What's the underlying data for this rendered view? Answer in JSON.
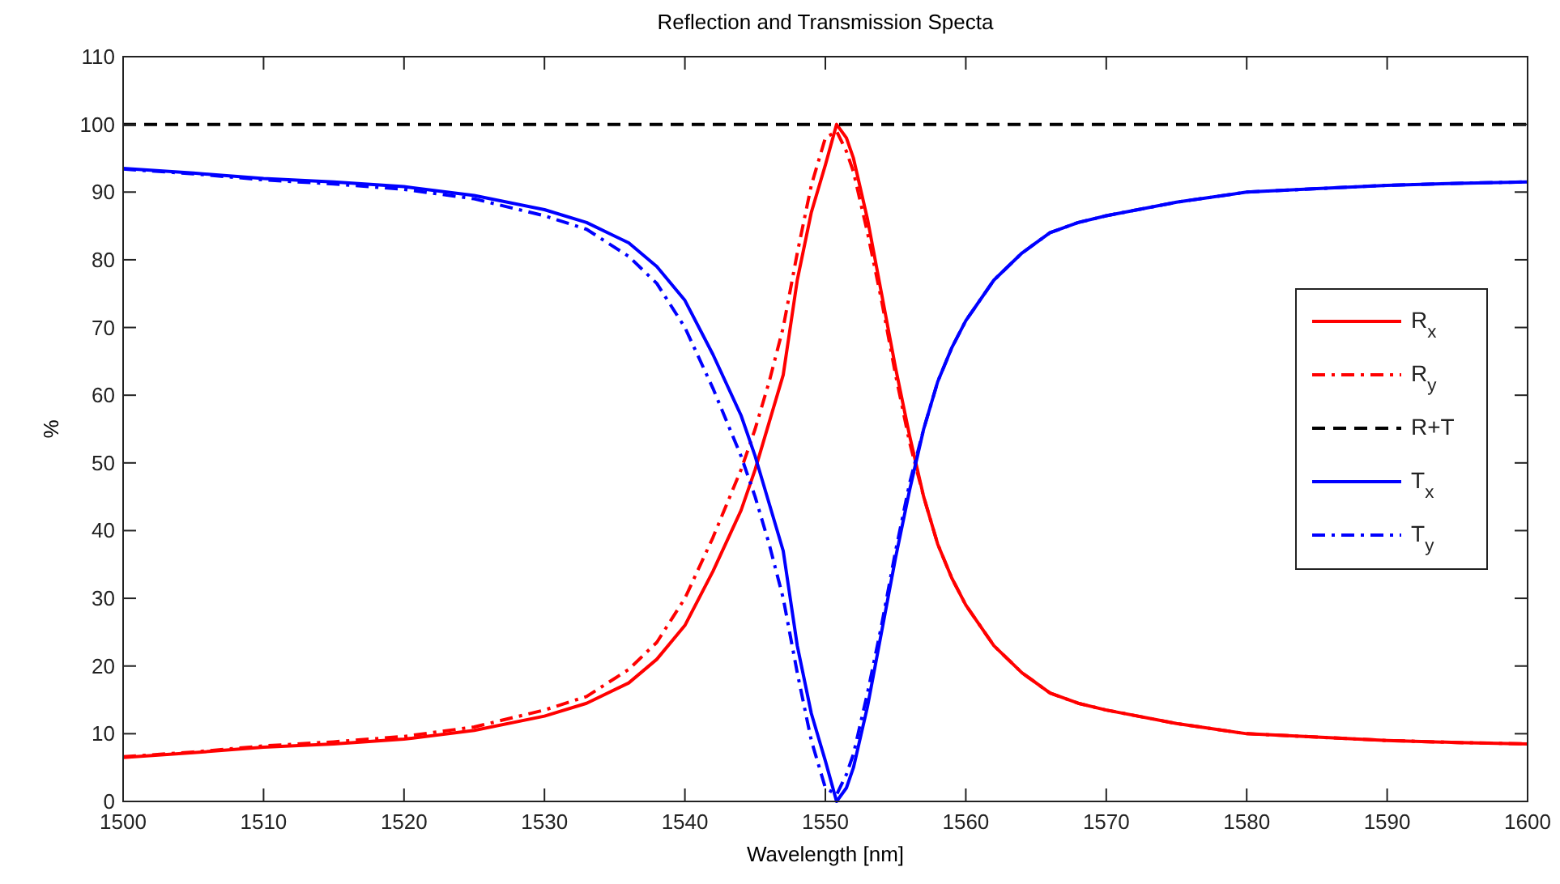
{
  "chart_data": {
    "type": "line",
    "title": "Reflection and Transmission Specta",
    "xlabel": "Wavelength [nm]",
    "ylabel": "%",
    "x": [
      1500,
      1505,
      1510,
      1515,
      1520,
      1525,
      1530,
      1533,
      1536,
      1538,
      1540,
      1542,
      1544,
      1545,
      1546,
      1547,
      1548,
      1549,
      1550,
      1550.8,
      1551.5,
      1552,
      1553,
      1554,
      1555,
      1556,
      1557,
      1558,
      1559,
      1560,
      1562,
      1564,
      1566,
      1568,
      1570,
      1575,
      1580,
      1585,
      1590,
      1595,
      1600
    ],
    "series": [
      {
        "name": "R$_{x}$",
        "color": "#ff0000",
        "line_style": "solid",
        "values": [
          6.5,
          7.2,
          8,
          8.5,
          9.2,
          10.5,
          12.6,
          14.5,
          17.5,
          21,
          26,
          34,
          43,
          49,
          56,
          63,
          77,
          87,
          94,
          100,
          98,
          95,
          86,
          75,
          64,
          54,
          45,
          38,
          33,
          29,
          23,
          19,
          16,
          14.5,
          13.5,
          11.5,
          10,
          9.5,
          9,
          8.7,
          8.5
        ]
      },
      {
        "name": "R$_{y}$",
        "color": "#ff0000",
        "line_style": "dashdot",
        "values": [
          6.6,
          7.3,
          8.2,
          8.8,
          9.6,
          11,
          13.5,
          15.5,
          19.5,
          23.5,
          30,
          39,
          49,
          55,
          62,
          70,
          81,
          91,
          98,
          99,
          96,
          93,
          84,
          74,
          63,
          53,
          45,
          38,
          33,
          29,
          23,
          19,
          16,
          14.5,
          13.5,
          11.5,
          10,
          9.5,
          9,
          8.7,
          8.5
        ]
      },
      {
        "name": "R+T",
        "color": "#000000",
        "line_style": "dashed",
        "x": [
          1500,
          1600
        ],
        "values": [
          100,
          100
        ]
      },
      {
        "name": "T$_{x}$",
        "color": "#0000ff",
        "line_style": "solid",
        "values": [
          93.5,
          92.8,
          92,
          91.5,
          90.8,
          89.5,
          87.4,
          85.5,
          82.5,
          79,
          74,
          66,
          57,
          51,
          44,
          37,
          23,
          13,
          6,
          0,
          2,
          5,
          14,
          25,
          36,
          46,
          55,
          62,
          67,
          71,
          77,
          81,
          84,
          85.5,
          86.5,
          88.5,
          90,
          90.5,
          91,
          91.3,
          91.5
        ]
      },
      {
        "name": "T$_{y}$",
        "color": "#0000ff",
        "line_style": "dashdot",
        "values": [
          93.4,
          92.7,
          91.8,
          91.2,
          90.4,
          89,
          86.5,
          84.5,
          80.5,
          76.5,
          70,
          61,
          51,
          45,
          38,
          30,
          19,
          9,
          2,
          1,
          4,
          7,
          16,
          26,
          37,
          47,
          55,
          62,
          67,
          71,
          77,
          81,
          84,
          85.5,
          86.5,
          88.5,
          90,
          90.5,
          91,
          91.3,
          91.5
        ]
      }
    ],
    "xlim": [
      1500,
      1600
    ],
    "xticks": [
      1500,
      1510,
      1520,
      1530,
      1540,
      1550,
      1560,
      1570,
      1580,
      1590,
      1600
    ],
    "ylim": [
      0,
      110
    ],
    "yticks": [
      0,
      10,
      20,
      30,
      40,
      50,
      60,
      70,
      80,
      90,
      100,
      110
    ],
    "grid": false,
    "legend": "right",
    "marker": "none"
  }
}
